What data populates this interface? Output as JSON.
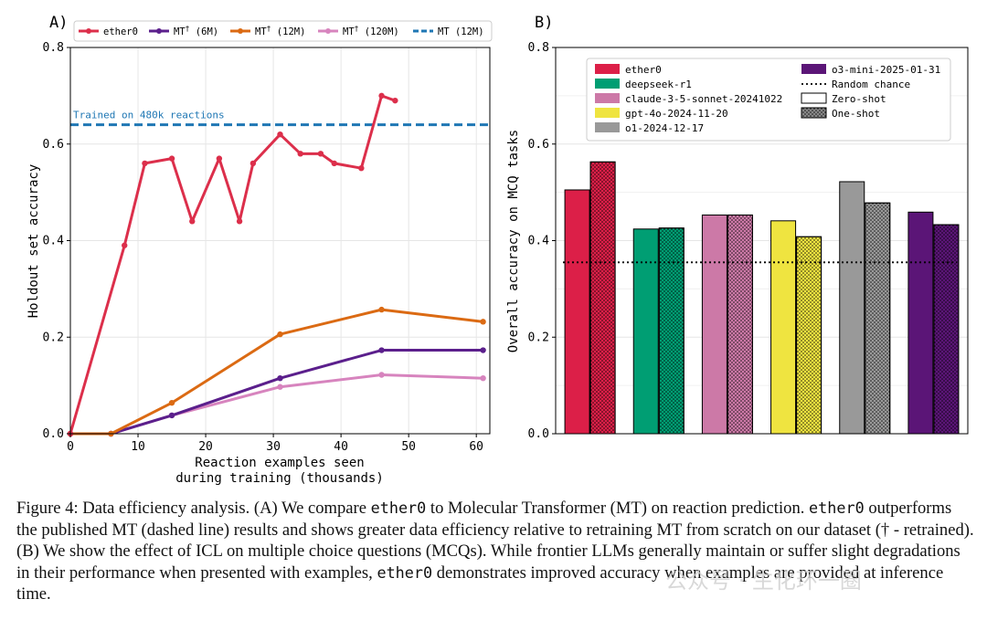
{
  "chart_data": [
    {
      "panel": "A)",
      "type": "line",
      "xlabel_lines": [
        "Reaction examples seen",
        "during training (thousands)"
      ],
      "ylabel": "Holdout set accuracy",
      "xlim": [
        0,
        62
      ],
      "ylim": [
        0,
        0.8
      ],
      "xticks": [
        0,
        10,
        20,
        30,
        40,
        50,
        60
      ],
      "yticks": [
        0.0,
        0.2,
        0.4,
        0.6,
        0.8
      ],
      "ytick_labels": [
        "0.0",
        "0.2",
        "0.4",
        "0.6",
        "0.8"
      ],
      "series": [
        {
          "name": "ether0",
          "color": "#dc2f4b",
          "x": [
            0,
            8,
            11,
            15,
            18,
            22,
            25,
            27,
            31,
            34,
            37,
            39,
            43,
            46,
            48
          ],
          "y": [
            0,
            0.39,
            0.56,
            0.57,
            0.44,
            0.57,
            0.44,
            0.56,
            0.62,
            0.58,
            0.58,
            0.56,
            0.55,
            0.7,
            0.69
          ]
        },
        {
          "name": "MT",
          "sup": "†",
          "size": " (6M)",
          "color": "#5b1f8c",
          "x": [
            0,
            6,
            15,
            31,
            46,
            61
          ],
          "y": [
            0,
            0,
            0.038,
            0.115,
            0.173,
            0.173
          ]
        },
        {
          "name": "MT",
          "sup": "†",
          "size": " (12M)",
          "color": "#db6a13",
          "x": [
            0,
            6,
            15,
            31,
            46,
            61
          ],
          "y": [
            0,
            0,
            0.064,
            0.206,
            0.257,
            0.232
          ]
        },
        {
          "name": "MT",
          "sup": "†",
          "size": " (120M)",
          "color": "#d784be",
          "x": [
            0,
            6,
            15,
            31,
            46,
            61
          ],
          "y": [
            0,
            0,
            0.038,
            0.097,
            0.122,
            0.115
          ]
        }
      ],
      "reference_line": {
        "name": "MT (12M)",
        "y": 0.64,
        "color": "#1f77b4",
        "style": "dashed",
        "annotation": "Trained on 480k reactions"
      },
      "legend_position": "top"
    },
    {
      "panel": "B)",
      "type": "bar",
      "ylabel": "Overall accuracy on MCQ tasks",
      "ylim": [
        0,
        0.8
      ],
      "yticks": [
        0.0,
        0.2,
        0.4,
        0.6,
        0.8
      ],
      "ytick_labels": [
        "0.0",
        "0.2",
        "0.4",
        "0.6",
        "0.8"
      ],
      "series": [
        "Zero-shot",
        "One-shot"
      ],
      "models": [
        {
          "name": "ether0",
          "color": "#dc1f48",
          "zero_shot": 0.505,
          "one_shot": 0.563
        },
        {
          "name": "deepseek-r1",
          "color": "#009e73",
          "zero_shot": 0.424,
          "one_shot": 0.426
        },
        {
          "name": "claude-3-5-sonnet-20241022",
          "color": "#cc79a7",
          "zero_shot": 0.453,
          "one_shot": 0.453
        },
        {
          "name": "gpt-4o-2024-11-20",
          "color": "#efe440",
          "zero_shot": 0.441,
          "one_shot": 0.408
        },
        {
          "name": "o1-2024-12-17",
          "color": "#999999",
          "zero_shot": 0.522,
          "one_shot": 0.478
        },
        {
          "name": "o3-mini-2025-01-31",
          "color": "#5b1577",
          "zero_shot": 0.459,
          "one_shot": 0.433
        }
      ],
      "random_chance": {
        "label": "Random chance",
        "y": 0.355
      },
      "legend_extra": [
        "Random chance",
        "Zero-shot",
        "One-shot"
      ],
      "legend_position": "top"
    }
  ],
  "caption": {
    "label": "Figure 4: Data efficiency analysis. (A) We compare ",
    "code1": "ether0",
    "t1": " to Molecular Transformer (MT) on reaction prediction. ",
    "code2": "ether0",
    "t2": " outperforms the published MT (dashed line) results and shows greater data efficiency relative to retraining MT from scratch on our dataset († - retrained). (B) We show the effect of ICL on multiple choice questions (MCQs). While frontier LLMs generally maintain or suffer slight degradations in their performance when presented with examples, ",
    "code3": "ether0",
    "t3": " demonstrates improved accuracy when examples are provided at inference time."
  },
  "watermark": "公众号 · 生化环一圈"
}
